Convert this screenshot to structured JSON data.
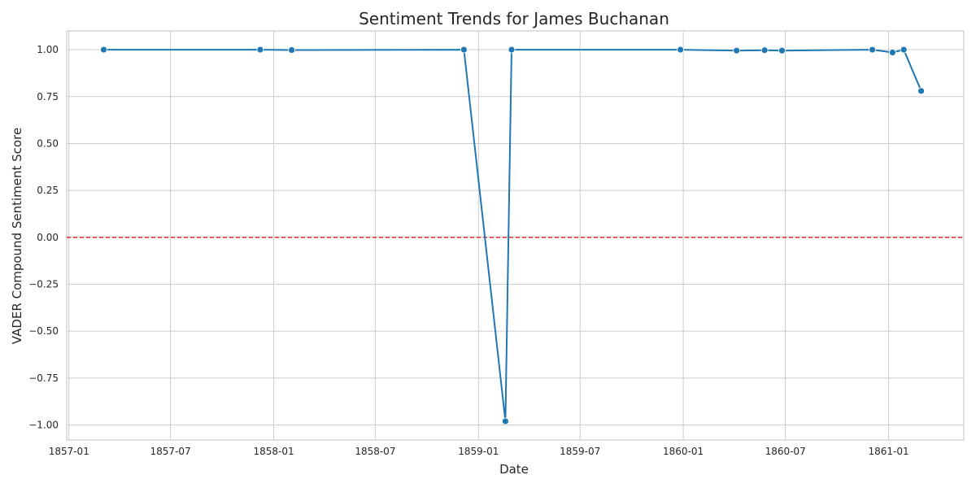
{
  "chart_data": {
    "type": "line",
    "title": "Sentiment Trends for James Buchanan",
    "xlabel": "Date",
    "ylabel": "VADER Compound Sentiment Score",
    "x_scale": "date",
    "xlim": [
      "1856-12-28",
      "1861-05-15"
    ],
    "ylim": [
      -1.08,
      1.1
    ],
    "x_ticks": [
      "1857-01-01",
      "1857-07-01",
      "1858-01-01",
      "1858-07-01",
      "1859-01-01",
      "1859-07-01",
      "1860-01-01",
      "1860-07-01",
      "1861-01-01"
    ],
    "x_tick_labels": [
      "1857-01",
      "1857-07",
      "1858-01",
      "1858-07",
      "1859-01",
      "1859-07",
      "1860-01",
      "1860-07",
      "1861-01"
    ],
    "y_ticks": [
      1.0,
      0.75,
      0.5,
      0.25,
      0.0,
      -0.25,
      -0.5,
      -0.75,
      -1.0
    ],
    "y_tick_labels": [
      "1.00",
      "0.75",
      "0.50",
      "0.25",
      "0.00",
      "−0.25",
      "−0.50",
      "−0.75",
      "−1.00"
    ],
    "grid": true,
    "reference_line": {
      "y": 0.0,
      "style": "dashed",
      "color": "#e41a1c"
    },
    "series": [
      {
        "color": "#1f77b4",
        "marker": "circle",
        "points": [
          {
            "x": "1857-03-04",
            "y": 1.0
          },
          {
            "x": "1857-12-08",
            "y": 1.0
          },
          {
            "x": "1858-02-02",
            "y": 0.998
          },
          {
            "x": "1858-12-06",
            "y": 1.0
          },
          {
            "x": "1859-02-18",
            "y": -0.98
          },
          {
            "x": "1859-03-01",
            "y": 1.0
          },
          {
            "x": "1859-12-27",
            "y": 1.0
          },
          {
            "x": "1860-04-05",
            "y": 0.995
          },
          {
            "x": "1860-05-25",
            "y": 0.997
          },
          {
            "x": "1860-06-25",
            "y": 0.995
          },
          {
            "x": "1860-12-03",
            "y": 1.0
          },
          {
            "x": "1861-01-08",
            "y": 0.985
          },
          {
            "x": "1861-01-28",
            "y": 1.0
          },
          {
            "x": "1861-02-28",
            "y": 0.78
          }
        ]
      }
    ]
  }
}
